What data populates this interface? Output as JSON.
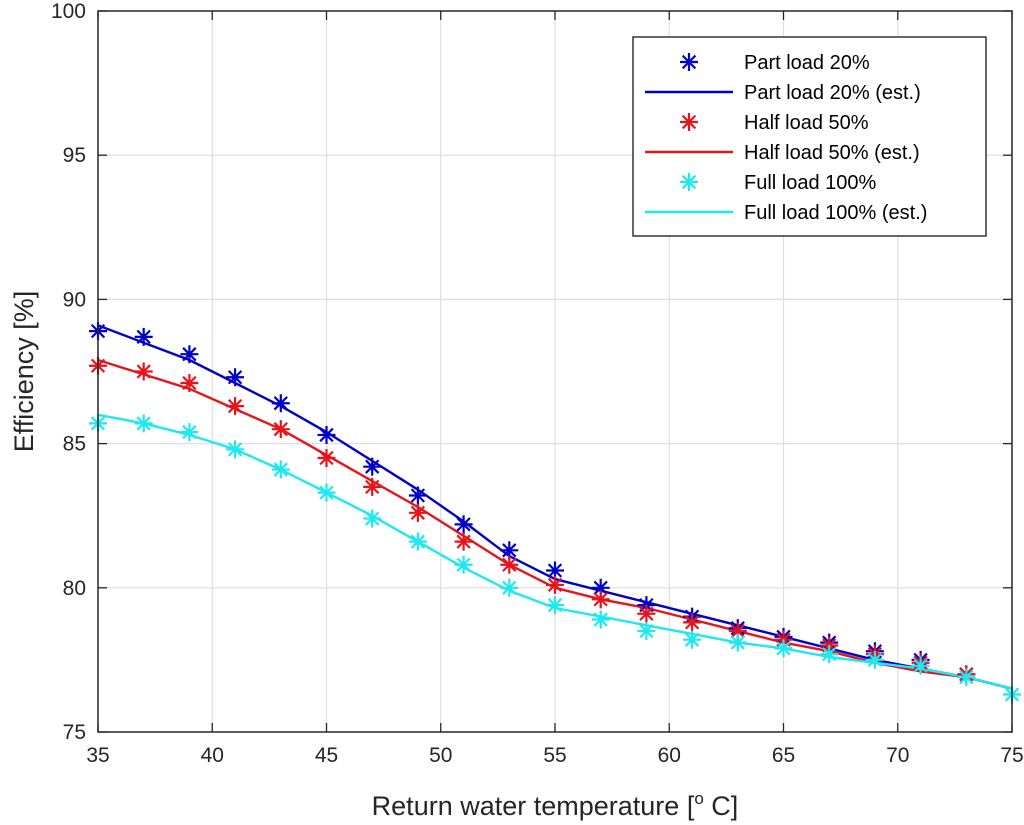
{
  "chart_data": {
    "type": "line",
    "title": "",
    "xlabel": "Return water temperature [",
    "xlabel_sup": "o",
    "xlabel_end": " C]",
    "ylabel": "Efficiency [%]",
    "xlim": [
      35,
      75
    ],
    "ylim": [
      75,
      100
    ],
    "xticks": [
      35,
      40,
      45,
      50,
      55,
      60,
      65,
      70,
      75
    ],
    "yticks": [
      75,
      80,
      85,
      90,
      95,
      100
    ],
    "grid": true,
    "legend_position": "top-right",
    "series": [
      {
        "name": "Part load 20%",
        "kind": "marker",
        "color": "#0000CC",
        "x": [
          35,
          37,
          39,
          41,
          43,
          45,
          47,
          49,
          51,
          53,
          55,
          57,
          59,
          61,
          63,
          65,
          67,
          69,
          71,
          73
        ],
        "y": [
          88.9,
          88.7,
          88.1,
          87.3,
          86.4,
          85.3,
          84.2,
          83.2,
          82.2,
          81.3,
          80.6,
          80.0,
          79.4,
          79.0,
          78.6,
          78.3,
          78.1,
          77.8,
          77.5,
          77.0
        ]
      },
      {
        "name": "Part load 20% (est.)",
        "kind": "line",
        "color": "#0000CC",
        "x": [
          35,
          37,
          39,
          41,
          43,
          45,
          47,
          49,
          51,
          53,
          55,
          57,
          59,
          61,
          63,
          65,
          67,
          69,
          71,
          73,
          75
        ],
        "y": [
          89.1,
          88.5,
          87.9,
          87.1,
          86.3,
          85.4,
          84.4,
          83.4,
          82.3,
          81.1,
          80.3,
          79.9,
          79.5,
          79.1,
          78.7,
          78.3,
          77.9,
          77.5,
          77.2,
          76.9,
          76.5
        ]
      },
      {
        "name": "Half load 50%",
        "kind": "marker",
        "color": "#E8141C",
        "x": [
          35,
          37,
          39,
          41,
          43,
          45,
          47,
          49,
          51,
          53,
          55,
          57,
          59,
          61,
          63,
          65,
          67,
          69,
          71,
          73
        ],
        "y": [
          87.7,
          87.5,
          87.1,
          86.3,
          85.5,
          84.5,
          83.5,
          82.6,
          81.6,
          80.8,
          80.1,
          79.6,
          79.1,
          78.8,
          78.5,
          78.2,
          78.0,
          77.7,
          77.4,
          77.0
        ]
      },
      {
        "name": "Half load 50% (est.)",
        "kind": "line",
        "color": "#E8141C",
        "x": [
          35,
          37,
          39,
          41,
          43,
          45,
          47,
          49,
          51,
          53,
          55,
          57,
          59,
          61,
          63,
          65,
          67,
          69,
          71,
          73,
          75
        ],
        "y": [
          87.9,
          87.4,
          86.9,
          86.2,
          85.5,
          84.6,
          83.7,
          82.8,
          81.8,
          80.8,
          80.0,
          79.6,
          79.3,
          78.9,
          78.5,
          78.1,
          77.8,
          77.4,
          77.1,
          76.9,
          76.5
        ]
      },
      {
        "name": "Full load 100%",
        "kind": "marker",
        "color": "#1EE8F0",
        "x": [
          35,
          37,
          39,
          41,
          43,
          45,
          47,
          49,
          51,
          53,
          55,
          57,
          59,
          61,
          63,
          65,
          67,
          69,
          71,
          73,
          75
        ],
        "y": [
          85.7,
          85.7,
          85.4,
          84.8,
          84.1,
          83.3,
          82.4,
          81.6,
          80.8,
          80.0,
          79.4,
          78.9,
          78.5,
          78.2,
          78.1,
          77.9,
          77.7,
          77.5,
          77.3,
          76.9,
          76.3
        ]
      },
      {
        "name": "Full load 100% (est.)",
        "kind": "line",
        "color": "#1EE8F0",
        "x": [
          35,
          37,
          39,
          41,
          43,
          45,
          47,
          49,
          51,
          53,
          55,
          57,
          59,
          61,
          63,
          65,
          67,
          69,
          71,
          73,
          75
        ],
        "y": [
          86.0,
          85.7,
          85.3,
          84.8,
          84.1,
          83.3,
          82.5,
          81.6,
          80.7,
          79.9,
          79.3,
          79.0,
          78.7,
          78.4,
          78.1,
          77.9,
          77.6,
          77.4,
          77.2,
          76.9,
          76.5
        ]
      }
    ]
  }
}
